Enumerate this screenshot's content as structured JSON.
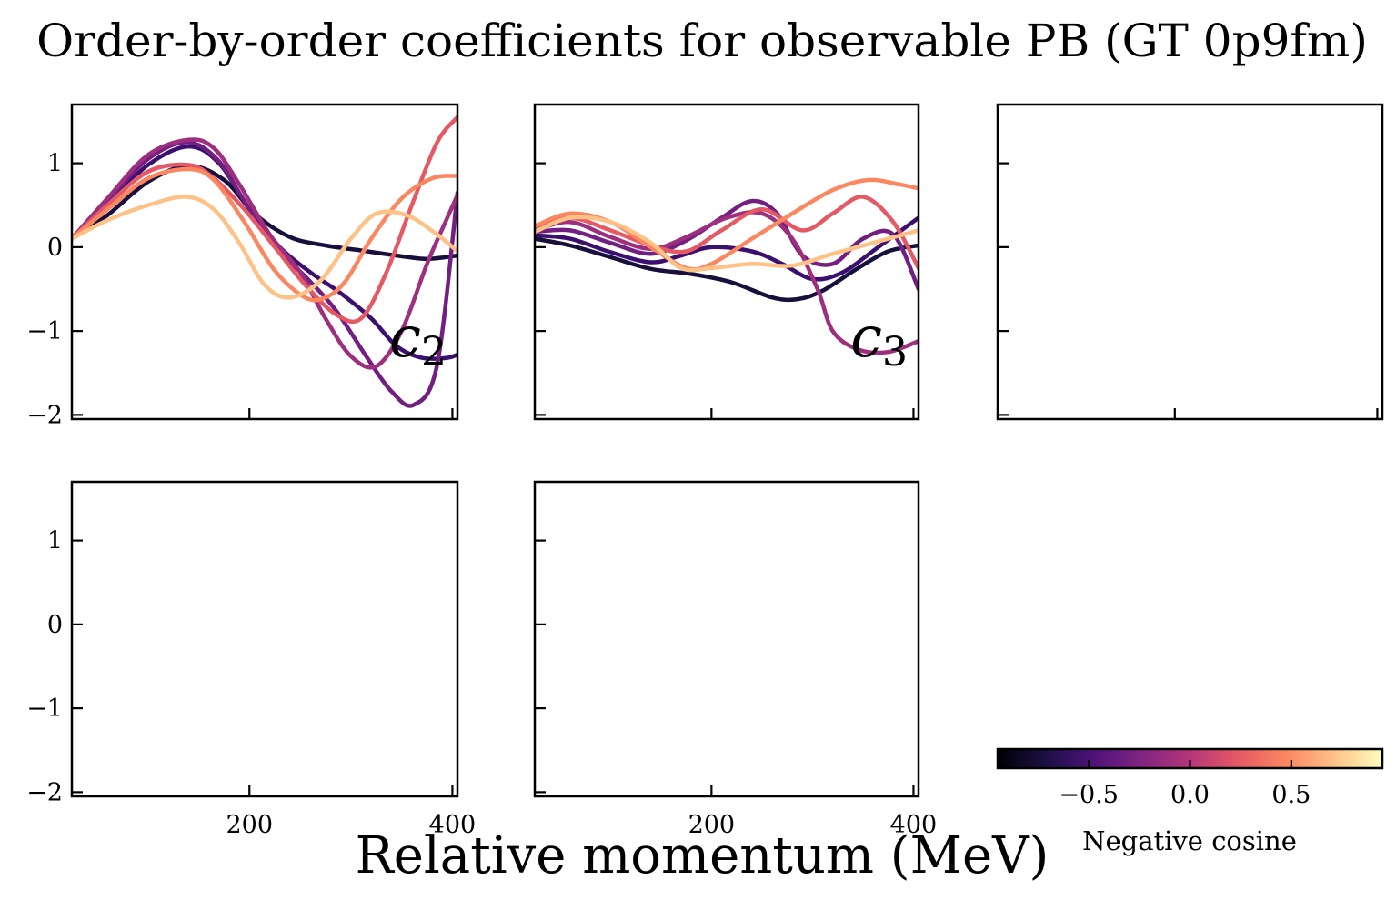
{
  "figure": {
    "title": "Order-by-order coefficients for observable PB (GT 0p9fm)",
    "xlabel": "Relative momentum (MeV)",
    "colorbar": {
      "label": "Negative cosine",
      "range": [
        -0.95,
        0.95
      ],
      "ticks": [
        -0.5,
        0.0,
        0.5
      ],
      "tick_labels": [
        "−0.5",
        "0.0",
        "0.5"
      ],
      "colormap": "magma",
      "stops": [
        "#000004",
        "#1c1044",
        "#4f127b",
        "#812581",
        "#b5367a",
        "#e55964",
        "#fb8761",
        "#fec287",
        "#fcfdbf"
      ]
    }
  },
  "chart_data": [
    {
      "type": "line",
      "panel": "c2",
      "label": "c",
      "label_sub": "2",
      "xlim": [
        25,
        405
      ],
      "ylim": [
        -2.05,
        1.7
      ],
      "x_ticks": [
        200,
        400
      ],
      "x_tick_labels": [],
      "y_ticks": [
        -2,
        -1,
        0,
        1
      ],
      "y_tick_labels": [
        "−2",
        "−1",
        "0",
        "1"
      ],
      "series": [
        {
          "color": "#180f3d",
          "x": [
            25,
            60,
            100,
            140,
            175,
            205,
            240,
            275,
            310,
            345,
            375,
            405
          ],
          "y": [
            0.1,
            0.38,
            0.78,
            0.97,
            0.8,
            0.4,
            0.12,
            0.02,
            -0.04,
            -0.1,
            -0.14,
            -0.1
          ]
        },
        {
          "color": "#3b0f70",
          "x": [
            25,
            60,
            100,
            140,
            170,
            200,
            230,
            260,
            290,
            320,
            345,
            370,
            395,
            405
          ],
          "y": [
            0.1,
            0.5,
            0.98,
            1.2,
            1.0,
            0.45,
            0.0,
            -0.3,
            -0.55,
            -0.85,
            -1.18,
            -1.32,
            -1.32,
            -1.28
          ]
        },
        {
          "color": "#721f81",
          "x": [
            25,
            60,
            100,
            138,
            168,
            195,
            225,
            255,
            285,
            315,
            340,
            362,
            385,
            405
          ],
          "y": [
            0.1,
            0.55,
            1.05,
            1.25,
            1.05,
            0.55,
            0.0,
            -0.35,
            -0.75,
            -1.3,
            -1.72,
            -1.88,
            -1.4,
            0.65
          ]
        },
        {
          "color": "#9e2f7f",
          "x": [
            25,
            60,
            100,
            140,
            165,
            190,
            220,
            250,
            275,
            300,
            325,
            350,
            375,
            395,
            405
          ],
          "y": [
            0.1,
            0.58,
            1.1,
            1.28,
            1.18,
            0.75,
            0.15,
            -0.3,
            -0.85,
            -1.3,
            -1.42,
            -1.0,
            -0.2,
            0.35,
            0.62
          ]
        },
        {
          "color": "#e55964",
          "x": [
            25,
            60,
            100,
            140,
            165,
            195,
            225,
            255,
            285,
            310,
            335,
            360,
            385,
            405
          ],
          "y": [
            0.1,
            0.5,
            0.9,
            0.98,
            0.82,
            0.45,
            0.0,
            -0.45,
            -0.8,
            -0.85,
            -0.3,
            0.5,
            1.25,
            1.55
          ]
        },
        {
          "color": "#fb8761",
          "x": [
            25,
            60,
            100,
            140,
            165,
            195,
            225,
            255,
            275,
            295,
            320,
            350,
            380,
            405
          ],
          "y": [
            0.1,
            0.45,
            0.82,
            0.93,
            0.8,
            0.3,
            -0.28,
            -0.6,
            -0.6,
            -0.4,
            0.1,
            0.58,
            0.82,
            0.85
          ]
        },
        {
          "color": "#fec287",
          "x": [
            25,
            60,
            100,
            138,
            165,
            190,
            215,
            240,
            270,
            300,
            325,
            355,
            385,
            405
          ],
          "y": [
            0.1,
            0.32,
            0.5,
            0.6,
            0.45,
            0.05,
            -0.45,
            -0.6,
            -0.4,
            0.1,
            0.4,
            0.38,
            0.15,
            -0.05
          ]
        }
      ]
    },
    {
      "type": "line",
      "panel": "c3",
      "label": "c",
      "label_sub": "3",
      "xlim": [
        25,
        405
      ],
      "ylim": [
        -2.05,
        1.7
      ],
      "x_ticks": [
        200,
        400
      ],
      "x_tick_labels": [],
      "y_ticks": [
        -2,
        -1,
        0,
        1
      ],
      "y_tick_labels": [],
      "series": [
        {
          "color": "#180f3d",
          "x": [
            25,
            60,
            100,
            140,
            180,
            220,
            260,
            285,
            310,
            345,
            375,
            405
          ],
          "y": [
            0.1,
            0.02,
            -0.12,
            -0.26,
            -0.32,
            -0.42,
            -0.6,
            -0.62,
            -0.52,
            -0.25,
            -0.05,
            0.02
          ]
        },
        {
          "color": "#3b0f70",
          "x": [
            25,
            60,
            100,
            140,
            170,
            200,
            240,
            270,
            300,
            330,
            365,
            405
          ],
          "y": [
            0.14,
            0.1,
            -0.06,
            -0.18,
            -0.1,
            0.0,
            -0.05,
            -0.2,
            -0.38,
            -0.3,
            0.0,
            0.35
          ]
        },
        {
          "color": "#721f81",
          "x": [
            25,
            60,
            100,
            140,
            175,
            210,
            240,
            265,
            290,
            320,
            350,
            380,
            405
          ],
          "y": [
            0.18,
            0.2,
            0.05,
            -0.08,
            0.08,
            0.35,
            0.55,
            0.4,
            -0.1,
            -0.2,
            0.1,
            0.15,
            -0.5
          ]
        },
        {
          "color": "#9e2f7f",
          "x": [
            25,
            60,
            100,
            140,
            175,
            215,
            250,
            280,
            305,
            320,
            345,
            375,
            405
          ],
          "y": [
            0.2,
            0.3,
            0.12,
            -0.02,
            0.12,
            0.35,
            0.4,
            0.1,
            -0.5,
            -1.0,
            -1.22,
            -1.25,
            -1.12
          ]
        },
        {
          "color": "#e55964",
          "x": [
            25,
            60,
            100,
            140,
            175,
            210,
            250,
            290,
            320,
            350,
            380,
            405
          ],
          "y": [
            0.22,
            0.35,
            0.2,
            0.02,
            -0.05,
            0.2,
            0.45,
            0.2,
            0.4,
            0.6,
            0.3,
            -0.25
          ]
        },
        {
          "color": "#fb8761",
          "x": [
            25,
            60,
            100,
            140,
            175,
            200,
            240,
            280,
            320,
            355,
            385,
            405
          ],
          "y": [
            0.25,
            0.4,
            0.3,
            0.0,
            -0.25,
            -0.2,
            0.1,
            0.4,
            0.68,
            0.8,
            0.75,
            0.7
          ]
        },
        {
          "color": "#fec287",
          "x": [
            25,
            60,
            100,
            140,
            170,
            200,
            240,
            280,
            320,
            360,
            390,
            405
          ],
          "y": [
            0.18,
            0.35,
            0.3,
            0.05,
            -0.25,
            -0.25,
            -0.2,
            -0.22,
            -0.08,
            0.05,
            0.15,
            0.2
          ]
        }
      ]
    },
    {
      "type": "line",
      "panel": "c4",
      "xlim": [
        25,
        405
      ],
      "ylim": [
        -2.05,
        1.7
      ],
      "x_ticks": [
        200,
        400
      ],
      "x_tick_labels": [],
      "y_ticks": [
        -2,
        -1,
        0,
        1
      ],
      "y_tick_labels": [],
      "series": []
    },
    {
      "type": "line",
      "panel": "c5",
      "xlim": [
        25,
        405
      ],
      "ylim": [
        -2.05,
        1.7
      ],
      "x_ticks": [
        200,
        400
      ],
      "x_tick_labels": [
        "200",
        "400"
      ],
      "y_ticks": [
        -2,
        -1,
        0,
        1
      ],
      "y_tick_labels": [
        "−2",
        "−1",
        "0",
        "1"
      ],
      "series": []
    },
    {
      "type": "line",
      "panel": "c6",
      "xlim": [
        25,
        405
      ],
      "ylim": [
        -2.05,
        1.7
      ],
      "x_ticks": [
        200,
        400
      ],
      "x_tick_labels": [
        "200",
        "400"
      ],
      "y_ticks": [
        -2,
        -1,
        0,
        1
      ],
      "y_tick_labels": [],
      "series": []
    }
  ]
}
